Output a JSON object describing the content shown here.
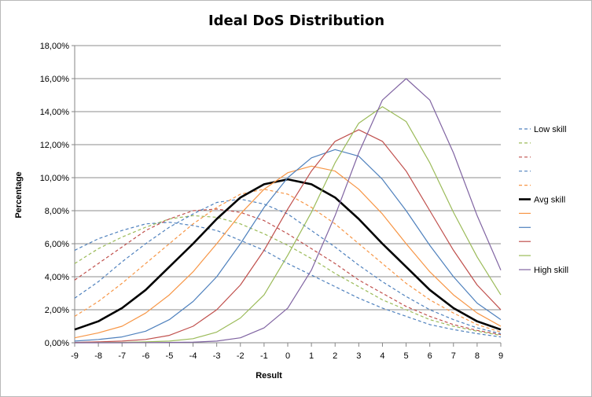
{
  "chart_data": {
    "type": "line",
    "title": "Ideal DoS Distribution",
    "xlabel": "Result",
    "ylabel": "Percentage",
    "x": [
      -9,
      -8,
      -7,
      -6,
      -5,
      -4,
      -3,
      -2,
      -1,
      0,
      1,
      2,
      3,
      4,
      5,
      6,
      7,
      8,
      9
    ],
    "ylim": [
      0,
      18
    ],
    "yticks": [
      "0,00%",
      "2,00%",
      "4,00%",
      "6,00%",
      "8,00%",
      "10,00%",
      "12,00%",
      "14,00%",
      "16,00%",
      "18,00%"
    ],
    "grid": true,
    "legend_position": "right",
    "series": [
      {
        "name": "Low skill",
        "color": "#4f81bd",
        "dashed": true,
        "bold": false,
        "values": [
          5.6,
          6.3,
          6.8,
          7.2,
          7.3,
          7.1,
          6.8,
          6.2,
          5.6,
          4.8,
          4.1,
          3.4,
          2.7,
          2.1,
          1.6,
          1.1,
          0.8,
          0.55,
          0.35
        ]
      },
      {
        "name": "",
        "color": "#9bbb59",
        "dashed": true,
        "bold": false,
        "values": [
          4.8,
          5.7,
          6.4,
          7.0,
          7.5,
          7.7,
          7.6,
          7.2,
          6.6,
          5.9,
          5.1,
          4.2,
          3.4,
          2.6,
          2.0,
          1.4,
          1.0,
          0.7,
          0.45
        ]
      },
      {
        "name": "",
        "color": "#c0504d",
        "dashed": true,
        "bold": false,
        "values": [
          3.8,
          4.8,
          5.8,
          6.8,
          7.5,
          8.0,
          8.1,
          7.9,
          7.4,
          6.6,
          5.7,
          4.8,
          3.8,
          3.0,
          2.2,
          1.6,
          1.1,
          0.75,
          0.5
        ]
      },
      {
        "name": "",
        "color": "#4f81bd",
        "dashed": true,
        "bold": false,
        "values": [
          2.7,
          3.7,
          4.9,
          6.0,
          7.0,
          7.8,
          8.5,
          8.7,
          8.4,
          7.8,
          6.8,
          5.8,
          4.7,
          3.7,
          2.8,
          2.0,
          1.4,
          0.9,
          0.55
        ]
      },
      {
        "name": "",
        "color": "#f79646",
        "dashed": true,
        "bold": false,
        "values": [
          1.6,
          2.5,
          3.6,
          4.8,
          6.0,
          7.2,
          8.2,
          9.0,
          9.3,
          9.0,
          8.2,
          7.2,
          6.0,
          4.8,
          3.6,
          2.6,
          1.8,
          1.1,
          0.65
        ]
      },
      {
        "name": "Avg skill",
        "color": "#000000",
        "dashed": false,
        "bold": true,
        "values": [
          0.8,
          1.3,
          2.1,
          3.2,
          4.6,
          6.0,
          7.5,
          8.8,
          9.6,
          9.9,
          9.6,
          8.8,
          7.5,
          6.0,
          4.6,
          3.2,
          2.1,
          1.3,
          0.8
        ]
      },
      {
        "name": "",
        "color": "#f79646",
        "dashed": false,
        "bold": false,
        "values": [
          0.3,
          0.6,
          1.0,
          1.8,
          2.9,
          4.3,
          6.0,
          7.8,
          9.3,
          10.3,
          10.7,
          10.4,
          9.3,
          7.8,
          6.0,
          4.3,
          2.9,
          1.8,
          1.0
        ]
      },
      {
        "name": "",
        "color": "#4f81bd",
        "dashed": false,
        "bold": false,
        "values": [
          0.1,
          0.2,
          0.35,
          0.7,
          1.4,
          2.5,
          4.0,
          6.0,
          8.2,
          10.0,
          11.2,
          11.7,
          11.3,
          9.9,
          8.0,
          5.9,
          4.0,
          2.4,
          1.4
        ]
      },
      {
        "name": "",
        "color": "#c0504d",
        "dashed": false,
        "bold": false,
        "values": [
          0.02,
          0.05,
          0.1,
          0.2,
          0.45,
          1.0,
          2.0,
          3.5,
          5.6,
          8.1,
          10.4,
          12.2,
          12.9,
          12.2,
          10.4,
          8.0,
          5.6,
          3.5,
          2.0
        ]
      },
      {
        "name": "",
        "color": "#9bbb59",
        "dashed": false,
        "bold": false,
        "values": [
          0.0,
          0.01,
          0.02,
          0.05,
          0.1,
          0.25,
          0.65,
          1.5,
          2.9,
          5.3,
          7.9,
          10.9,
          13.3,
          14.3,
          13.4,
          10.9,
          7.9,
          5.2,
          2.9
        ]
      },
      {
        "name": "High skill",
        "color": "#8064a2",
        "dashed": false,
        "bold": false,
        "values": [
          0.0,
          0.0,
          0.0,
          0.01,
          0.02,
          0.04,
          0.1,
          0.3,
          0.9,
          2.1,
          4.4,
          7.7,
          11.5,
          14.7,
          16.0,
          14.7,
          11.5,
          7.7,
          4.4
        ]
      }
    ]
  }
}
